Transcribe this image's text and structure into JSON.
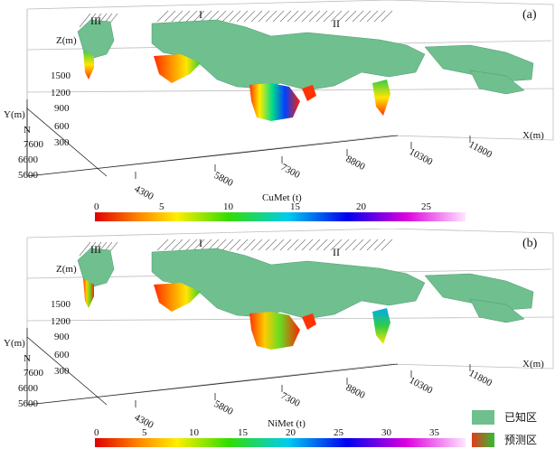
{
  "panels": [
    {
      "letter": "(a)",
      "roman": [
        "III",
        "I",
        "II"
      ],
      "z_label": "Z(m)",
      "y_label": "Y(m)",
      "x_label": "X(m)",
      "north": "N",
      "z_ticks": [
        "1500",
        "1200",
        "900",
        "600",
        "300"
      ],
      "y_ticks": [
        "7600",
        "6600",
        "5600"
      ],
      "x_ticks": [
        "4300",
        "5800",
        "7300",
        "8800",
        "10300",
        "11800"
      ],
      "colorbar_title": "CuMet (t)",
      "colorbar_ticks": [
        "0",
        "5",
        "10",
        "15",
        "20",
        "25"
      ]
    },
    {
      "letter": "(b)",
      "roman": [
        "III",
        "I",
        "II"
      ],
      "z_label": "Z(m)",
      "y_label": "Y(m)",
      "x_label": "X(m)",
      "north": "N",
      "z_ticks": [
        "1500",
        "1200",
        "900",
        "600",
        "300"
      ],
      "y_ticks": [
        "7600",
        "6600",
        "5600"
      ],
      "x_ticks": [
        "4300",
        "5800",
        "7300",
        "8800",
        "10300",
        "11800"
      ],
      "colorbar_title": "NiMet (t)",
      "colorbar_ticks": [
        "0",
        "5",
        "10",
        "15",
        "20",
        "25",
        "30",
        "35"
      ]
    }
  ],
  "legend": {
    "known": {
      "label": "已知区",
      "color": "#6fbf8f"
    },
    "predicted": {
      "label": "预测区",
      "color": "#e43a1e"
    }
  },
  "colors": {
    "known_body": "#6fbf8f",
    "box_line": "#b8b8b8"
  }
}
